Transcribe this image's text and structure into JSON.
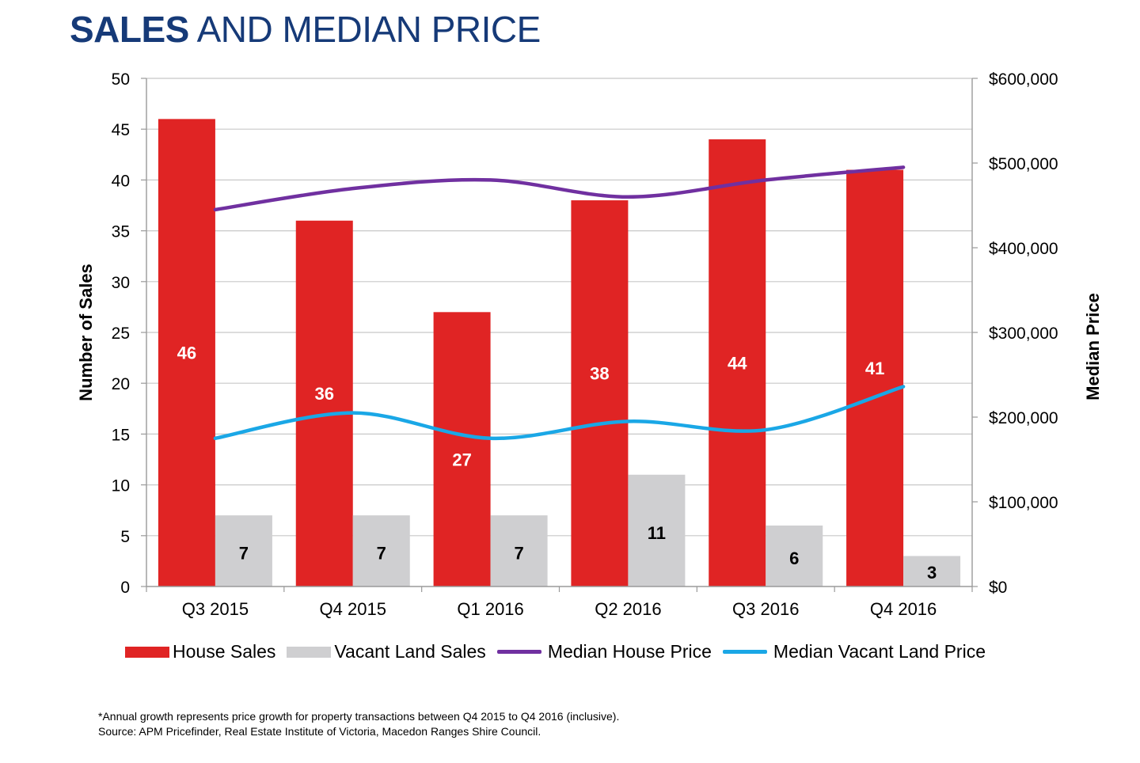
{
  "title": {
    "bold": "SALES",
    "rest": " AND MEDIAN PRICE"
  },
  "chart_data": {
    "type": "bar",
    "categories": [
      "Q3 2015",
      "Q4 2015",
      "Q1 2016",
      "Q2 2016",
      "Q3 2016",
      "Q4 2016"
    ],
    "series": [
      {
        "name": "House Sales",
        "type": "bar",
        "axis": "left",
        "color": "#e02424",
        "values": [
          46,
          36,
          27,
          38,
          44,
          41
        ],
        "labels": [
          "46",
          "36",
          "27",
          "38",
          "44",
          "41"
        ]
      },
      {
        "name": "Vacant Land Sales",
        "type": "bar",
        "axis": "left",
        "color": "#cfcfd1",
        "values": [
          7,
          7,
          7,
          11,
          6,
          3
        ],
        "labels": [
          "7",
          "7",
          "7",
          "11",
          "6",
          "3"
        ]
      },
      {
        "name": "Median House Price",
        "type": "line",
        "axis": "right",
        "color": "#7030a0",
        "values": [
          445000,
          470000,
          480000,
          460000,
          480000,
          495000
        ]
      },
      {
        "name": "Median Vacant Land Price",
        "type": "line",
        "axis": "right",
        "color": "#1aa7e6",
        "values": [
          175000,
          205000,
          175000,
          195000,
          185000,
          236000
        ]
      }
    ],
    "ylabel": "Number of Sales",
    "y2label": "Median Price",
    "ylim": [
      0,
      50
    ],
    "y2lim": [
      0,
      600000
    ],
    "yticks": [
      "0",
      "5",
      "10",
      "15",
      "20",
      "25",
      "30",
      "35",
      "40",
      "45",
      "50"
    ],
    "y2ticks": [
      "$0",
      "$100,000",
      "$200,000",
      "$300,000",
      "$400,000",
      "$500,000",
      "$600,000"
    ],
    "grid": true,
    "legend_position": "bottom"
  },
  "legend": {
    "house_sales": "House Sales",
    "vacant_land_sales": "Vacant Land Sales",
    "median_house_price": "Median House Price",
    "median_vacant_land_price": "Median Vacant Land Price"
  },
  "colors": {
    "title": "#163a78",
    "house": "#e02424",
    "land": "#cfcfd1",
    "house_price": "#7030a0",
    "land_price": "#1aa7e6"
  },
  "footnote": {
    "line1": "*Annual growth represents price growth for property transactions between Q4 2015 to Q4 2016 (inclusive).",
    "line2": "Source: APM Pricefinder, Real Estate Institute of Victoria, Macedon Ranges Shire Council."
  }
}
